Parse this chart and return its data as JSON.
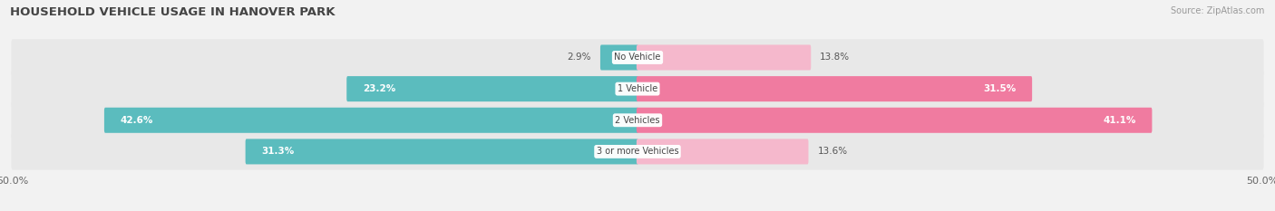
{
  "title": "HOUSEHOLD VEHICLE USAGE IN HANOVER PARK",
  "source": "Source: ZipAtlas.com",
  "categories": [
    "No Vehicle",
    "1 Vehicle",
    "2 Vehicles",
    "3 or more Vehicles"
  ],
  "owner_values": [
    2.9,
    23.2,
    42.6,
    31.3
  ],
  "renter_values": [
    13.8,
    31.5,
    41.1,
    13.6
  ],
  "owner_color": "#5bbcbe",
  "renter_color": "#f07ba0",
  "renter_light_color": "#f5b8cc",
  "background_color": "#f2f2f2",
  "row_bg_color": "#e8e8e8",
  "axis_max": 50.0
}
